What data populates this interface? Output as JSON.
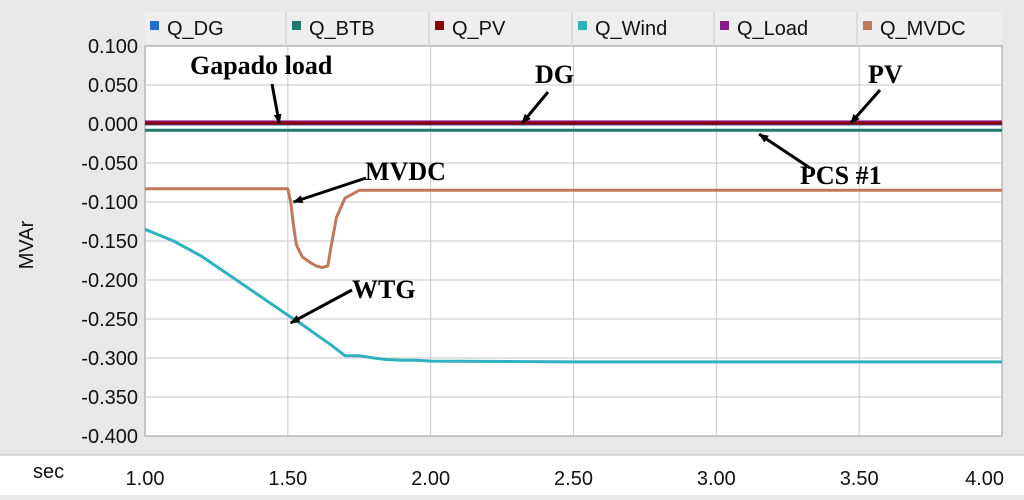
{
  "chart_data": {
    "type": "line",
    "xlabel": "sec",
    "ylabel": "MVAr",
    "xlim": [
      1.0,
      4.0
    ],
    "ylim": [
      -0.4,
      0.1
    ],
    "x_ticks": [
      "1.00",
      "1.50",
      "2.00",
      "2.50",
      "3.00",
      "3.50",
      "4.00"
    ],
    "y_ticks": [
      "0.100",
      "0.050",
      "0.000",
      "-0.050",
      "-0.100",
      "-0.150",
      "-0.200",
      "-0.250",
      "-0.300",
      "-0.350",
      "-0.400"
    ],
    "grid": true,
    "legend_position": "top",
    "series": [
      {
        "name": "Q_DG",
        "color": "#1f6fd0",
        "x": [
          1.0,
          4.0
        ],
        "y": [
          0.0,
          0.0
        ]
      },
      {
        "name": "Q_BTB",
        "color": "#1e7a6a",
        "x": [
          1.0,
          1.5,
          2.0,
          2.5,
          3.0,
          3.5,
          4.0
        ],
        "y": [
          -0.008,
          -0.008,
          -0.008,
          -0.008,
          -0.008,
          -0.008,
          -0.008
        ]
      },
      {
        "name": "Q_PV",
        "color": "#8b0000",
        "x": [
          1.0,
          4.0
        ],
        "y": [
          0.001,
          0.001
        ]
      },
      {
        "name": "Q_Wind",
        "color": "#2fb1bf",
        "x": [
          1.0,
          1.1,
          1.2,
          1.3,
          1.4,
          1.5,
          1.55,
          1.6,
          1.65,
          1.7,
          1.75,
          1.8,
          1.85,
          1.9,
          1.95,
          2.0,
          2.5,
          3.0,
          3.5,
          4.0
        ],
        "y": [
          -0.135,
          -0.15,
          -0.17,
          -0.195,
          -0.22,
          -0.245,
          -0.257,
          -0.27,
          -0.283,
          -0.297,
          -0.297,
          -0.3,
          -0.302,
          -0.303,
          -0.303,
          -0.304,
          -0.305,
          -0.305,
          -0.305,
          -0.305
        ]
      },
      {
        "name": "Q_Load",
        "color": "#8a1c8a",
        "x": [
          1.0,
          4.0
        ],
        "y": [
          0.002,
          0.002
        ]
      },
      {
        "name": "Q_MVDC",
        "color": "#c0785a",
        "x": [
          1.0,
          1.2,
          1.4,
          1.5,
          1.51,
          1.52,
          1.53,
          1.55,
          1.58,
          1.6,
          1.62,
          1.64,
          1.65,
          1.67,
          1.7,
          1.75,
          1.8,
          2.0,
          2.5,
          3.0,
          3.5,
          4.0
        ],
        "y": [
          -0.083,
          -0.083,
          -0.083,
          -0.083,
          -0.1,
          -0.13,
          -0.155,
          -0.17,
          -0.178,
          -0.182,
          -0.184,
          -0.182,
          -0.16,
          -0.12,
          -0.095,
          -0.085,
          -0.085,
          -0.085,
          -0.085,
          -0.085,
          -0.085,
          -0.085
        ]
      }
    ],
    "annotations": [
      {
        "text": "Gapado  load",
        "x": 1.47,
        "y": 0.001
      },
      {
        "text": "DG",
        "x": 2.32,
        "y": 0.001
      },
      {
        "text": "PV",
        "x": 3.47,
        "y": 0.001
      },
      {
        "text": "MVDC",
        "x": 1.52,
        "y": -0.1
      },
      {
        "text": "PCS #1",
        "x": 3.15,
        "y": -0.013
      },
      {
        "text": "WTG",
        "x": 1.51,
        "y": -0.255
      }
    ]
  }
}
